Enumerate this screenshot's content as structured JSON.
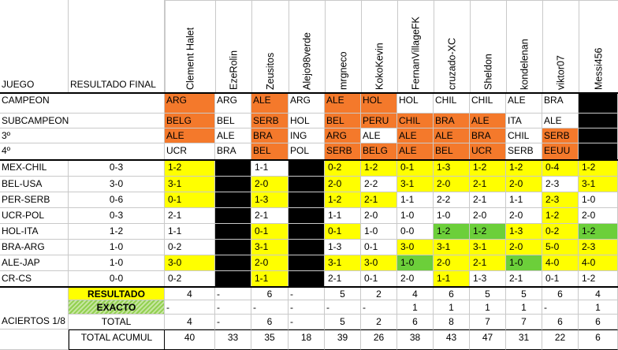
{
  "header": {
    "juego": "JUEGO",
    "resultado_final": "RESULTADO FINAL"
  },
  "players": [
    "Clement Halet",
    "EzeRolin",
    "Zeusitos",
    "Alejo98verde",
    "mrgneco",
    "KokoKevin",
    "FernanVillageFK",
    "cruzado-XC",
    "Sheldon",
    "kondelenan",
    "viktor07",
    "Messi456"
  ],
  "colors": {
    "orange": "#f4792b",
    "yellow": "#ffff00",
    "green": "#6ccf3a",
    "black": "#000000",
    "grid": "#c9c9c9",
    "hatch_green": "#92d050"
  },
  "podium": [
    {
      "label": "CAMPEON",
      "picks": [
        "ARG",
        "ARG",
        "ALE",
        "ARG",
        "ALE",
        "HOL",
        "HOL",
        "CHIL",
        "CHIL",
        "ALE",
        "BRA",
        ""
      ]
    },
    {
      "label": "SUBCAMPEON",
      "picks": [
        "BELG",
        "BEL",
        "SERB",
        "HOL",
        "BEL",
        "PERU",
        "CHIL",
        "BRA",
        "ALE",
        "ITA",
        "ALE",
        ""
      ]
    },
    {
      "label": "3º",
      "picks": [
        "ALE",
        "ALE",
        "BRA",
        "ING",
        "ARG",
        "ALE",
        "ALE",
        "ALE",
        "BRA",
        "CHIL",
        "SERB",
        ""
      ]
    },
    {
      "label": "4º",
      "picks": [
        "UCR",
        "BRA",
        "BEL",
        "POL",
        "SERB",
        "BELG",
        "ALE",
        "BEL",
        "UCR",
        "SERB",
        "EEUU",
        ""
      ]
    }
  ],
  "podium_colors": [
    [
      "o",
      "w",
      "o",
      "w",
      "o",
      "o",
      "w",
      "w",
      "w",
      "w",
      "w",
      "k"
    ],
    [
      "o",
      "w",
      "o",
      "w",
      "o",
      "o",
      "o",
      "o",
      "o",
      "w",
      "w",
      "k"
    ],
    [
      "o",
      "w",
      "o",
      "w",
      "o",
      "w",
      "o",
      "o",
      "o",
      "w",
      "o",
      "k"
    ],
    [
      "w",
      "w",
      "o",
      "w",
      "o",
      "o",
      "o",
      "o",
      "o",
      "w",
      "o",
      "k"
    ]
  ],
  "games": [
    {
      "juego": "MEX-CHIL",
      "result": "0-3",
      "picks": [
        "1-2",
        "",
        "1-1",
        "",
        "0-2",
        "1-2",
        "0-1",
        "1-3",
        "1-2",
        "1-2",
        "0-4",
        "1-2"
      ]
    },
    {
      "juego": "BEL-USA",
      "result": "3-0",
      "picks": [
        "3-1",
        "",
        "2-0",
        "",
        "2-0",
        "2-2",
        "3-1",
        "2-0",
        "2-1",
        "2-0",
        "2-3",
        "3-1"
      ]
    },
    {
      "juego": "PER-SERB",
      "result": "0-6",
      "picks": [
        "0-1",
        "",
        "1-3",
        "",
        "1-2",
        "2-1",
        "1-1",
        "2-2",
        "2-1",
        "1-1",
        "2-3",
        "1-0"
      ]
    },
    {
      "juego": "UCR-POL",
      "result": "0-3",
      "picks": [
        "2-1",
        "",
        "2-1",
        "",
        "1-1",
        "2-0",
        "1-0",
        "1-0",
        "2-0",
        "2-0",
        "1-2",
        "2-0"
      ]
    },
    {
      "juego": "HOL-ITA",
      "result": "1-2",
      "picks": [
        "1-1",
        "",
        "0-1",
        "",
        "0-1",
        "1-0",
        "0-0",
        "1-2",
        "1-2",
        "1-3",
        "0-2",
        "1-2"
      ]
    },
    {
      "juego": "BRA-ARG",
      "result": "1-0",
      "picks": [
        "0-2",
        "",
        "3-1",
        "",
        "1-3",
        "0-1",
        "3-0",
        "3-1",
        "3-1",
        "2-0",
        "5-0",
        "2-3"
      ]
    },
    {
      "juego": "ALE-JAP",
      "result": "1-0",
      "picks": [
        "3-0",
        "",
        "2-0",
        "",
        "3-1",
        "3-0",
        "1-0",
        "2-0",
        "2-1",
        "1-0",
        "4-0",
        "4-0"
      ]
    },
    {
      "juego": "CR-CS",
      "result": "0-0",
      "picks": [
        "0-2",
        "",
        "1-1",
        "",
        "2-1",
        "0-1",
        "2-0",
        "1-1",
        "1-3",
        "2-1",
        "0-1",
        "1-2"
      ]
    }
  ],
  "game_colors": [
    [
      "y",
      "k",
      "w",
      "k",
      "y",
      "y",
      "y",
      "y",
      "y",
      "y",
      "y",
      "y"
    ],
    [
      "y",
      "k",
      "y",
      "k",
      "y",
      "w",
      "y",
      "y",
      "y",
      "y",
      "w",
      "y"
    ],
    [
      "y",
      "k",
      "y",
      "k",
      "y",
      "y",
      "w",
      "w",
      "w",
      "w",
      "y",
      "w"
    ],
    [
      "w",
      "k",
      "w",
      "k",
      "w",
      "w",
      "w",
      "w",
      "w",
      "w",
      "y",
      "w"
    ],
    [
      "w",
      "k",
      "y",
      "k",
      "y",
      "w",
      "w",
      "g",
      "g",
      "y",
      "y",
      "g"
    ],
    [
      "w",
      "k",
      "y",
      "k",
      "w",
      "w",
      "y",
      "y",
      "y",
      "y",
      "y",
      "y"
    ],
    [
      "y",
      "k",
      "y",
      "k",
      "y",
      "y",
      "g",
      "y",
      "y",
      "g",
      "y",
      "y"
    ],
    [
      "w",
      "k",
      "y",
      "k",
      "w",
      "w",
      "w",
      "y",
      "w",
      "w",
      "w",
      "w"
    ]
  ],
  "summary": {
    "resultado_label": "RESULTADO",
    "exacto_label": "EXACTO",
    "aciertos_label": "ACIERTOS 1/8",
    "total_label": "TOTAL",
    "acumul_label": "TOTAL ACUMUL",
    "resultado": [
      "4",
      "-",
      "6",
      "-",
      "5",
      "2",
      "4",
      "6",
      "5",
      "5",
      "6",
      "4"
    ],
    "exacto": [
      "-",
      "-",
      "-",
      "-",
      "-",
      "-",
      "1",
      "1",
      "1",
      "1",
      "-",
      "1"
    ],
    "total": [
      "4",
      "-",
      "6",
      "-",
      "5",
      "2",
      "6",
      "8",
      "7",
      "7",
      "6",
      "6"
    ],
    "acumul": [
      "40",
      "33",
      "35",
      "18",
      "39",
      "26",
      "38",
      "43",
      "47",
      "31",
      "22",
      "6"
    ]
  }
}
